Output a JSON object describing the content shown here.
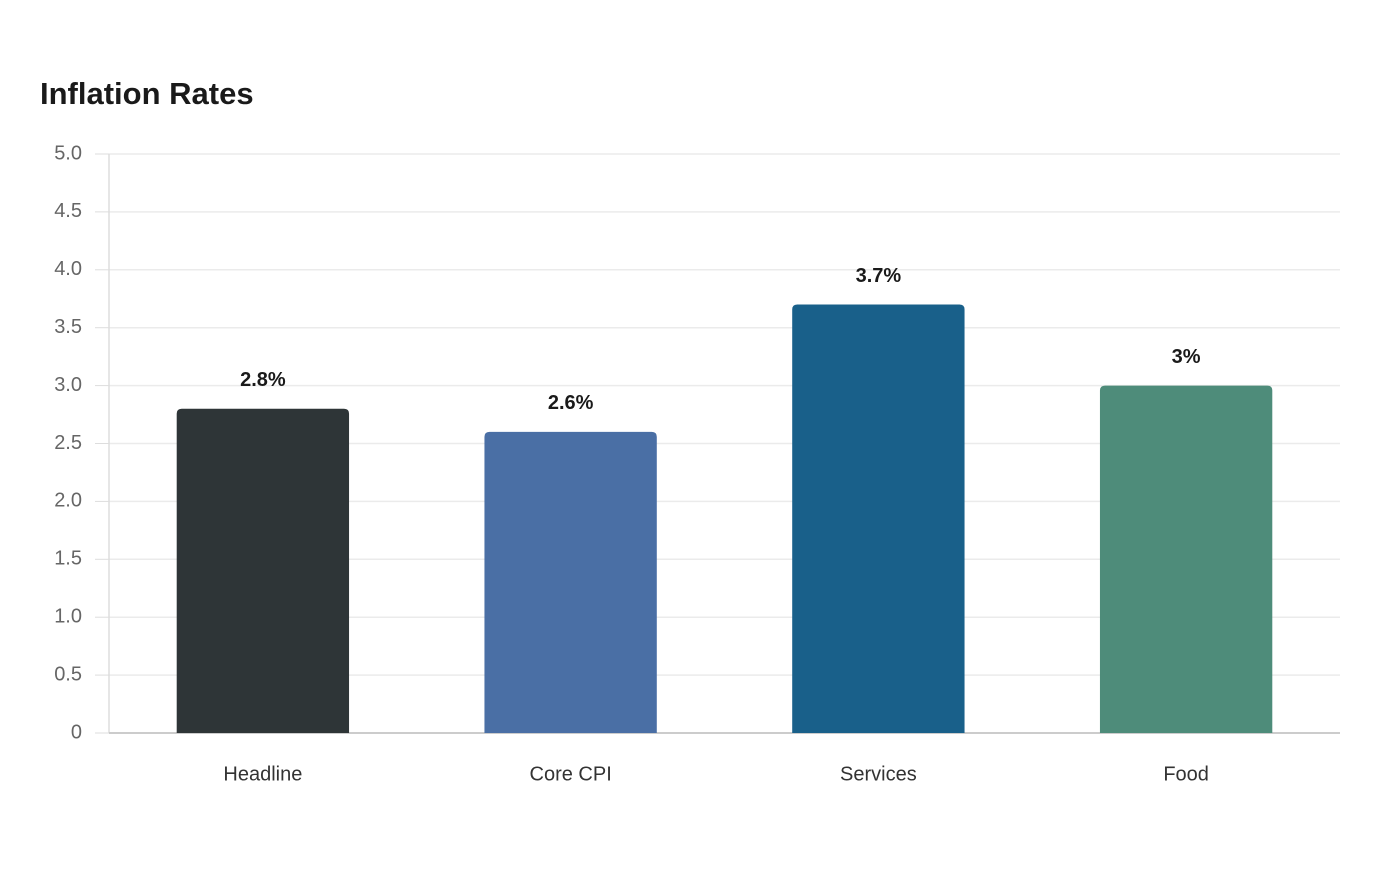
{
  "chart_data": {
    "type": "bar",
    "title": "Inflation Rates",
    "categories": [
      "Headline",
      "Core CPI",
      "Services",
      "Food"
    ],
    "values": [
      2.8,
      2.6,
      3.7,
      3
    ],
    "value_labels": [
      "2.8%",
      "2.6%",
      "3.7%",
      "3%"
    ],
    "colors": [
      "#2e3537",
      "#4a6fa5",
      "#19608a",
      "#4e8c7a"
    ],
    "ylim": [
      0,
      5
    ],
    "yticks": [
      0,
      0.5,
      {
        "value": 1,
        "label": "1.0"
      },
      1.5,
      {
        "value": 2,
        "label": "2.0"
      },
      2.5,
      {
        "value": 3,
        "label": "3.0"
      },
      3.5,
      {
        "value": 4,
        "label": "4.0"
      },
      4.5,
      {
        "value": 5,
        "label": "5.0"
      }
    ],
    "grid": true
  }
}
